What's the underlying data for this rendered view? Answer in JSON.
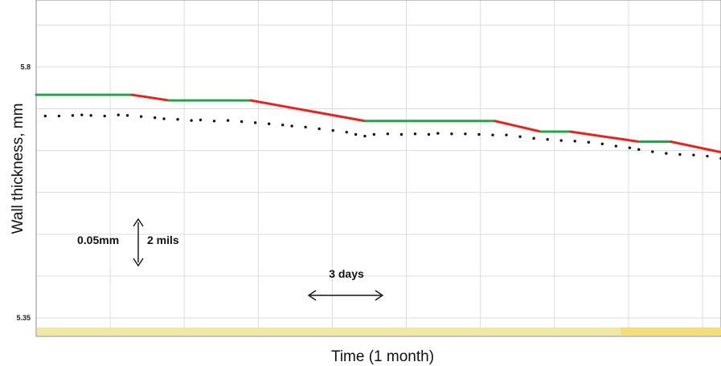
{
  "chart_data": {
    "type": "line",
    "title": "",
    "xlabel": "Time (1 month)",
    "ylabel": "Wall thickness, mm",
    "xlim": [
      0,
      30
    ],
    "ylim": [
      5.317,
      5.92
    ],
    "grid": true,
    "y_ticks": [
      {
        "value": 5.8,
        "label": "5.8"
      },
      {
        "value": 5.35,
        "label": "5.35"
      }
    ],
    "series": [
      {
        "style": "solid",
        "color_flat": "#1ea84a",
        "color_decline": "#e8231f",
        "x": [
          0,
          4.2,
          5.8,
          9.4,
          14.4,
          20.1,
          22.1,
          23.4,
          26.4,
          27.8,
          30
        ],
        "y": [
          5.75,
          5.75,
          5.74,
          5.74,
          5.703,
          5.703,
          5.684,
          5.684,
          5.666,
          5.666,
          5.647
        ]
      },
      {
        "style": "dotted",
        "color": "#111111",
        "x": [
          0.4,
          1.0,
          1.6,
          2.0,
          2.4,
          3.0,
          3.6,
          4.0,
          4.6,
          5.2,
          5.6,
          6.2,
          6.8,
          7.2,
          7.8,
          8.4,
          9.0,
          9.6,
          10.2,
          10.8,
          11.2,
          11.8,
          12.4,
          13.0,
          13.6,
          14.0,
          14.4,
          14.8,
          15.4,
          16.0,
          16.6,
          17.2,
          17.6,
          18.2,
          18.8,
          19.4,
          20.0,
          20.6,
          21.2,
          21.8,
          22.4,
          23.0,
          23.6,
          24.2,
          24.8,
          25.4,
          26.0,
          26.4,
          27.0,
          27.6,
          28.2,
          28.8,
          29.4,
          30.0
        ],
        "y": [
          5.712,
          5.712,
          5.713,
          5.714,
          5.713,
          5.712,
          5.714,
          5.713,
          5.711,
          5.709,
          5.707,
          5.706,
          5.704,
          5.705,
          5.703,
          5.704,
          5.702,
          5.7,
          5.698,
          5.696,
          5.694,
          5.692,
          5.689,
          5.686,
          5.683,
          5.679,
          5.676,
          5.679,
          5.68,
          5.679,
          5.68,
          5.679,
          5.681,
          5.68,
          5.68,
          5.679,
          5.678,
          5.678,
          5.675,
          5.672,
          5.67,
          5.668,
          5.667,
          5.665,
          5.662,
          5.658,
          5.655,
          5.652,
          5.648,
          5.645,
          5.643,
          5.642,
          5.64,
          5.636
        ]
      }
    ],
    "annotations": [
      {
        "left_text": "0.05mm",
        "right_text": "2 mils",
        "kind": "vertical-scale-bar",
        "span_mm": 0.05
      },
      {
        "text": "3 days",
        "kind": "horizontal-scale-bar",
        "span_days": 3
      }
    ]
  }
}
